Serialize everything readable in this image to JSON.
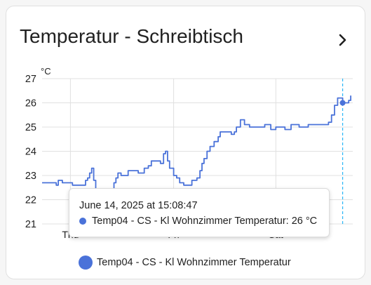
{
  "card": {
    "title": "Temperatur - Schreibtisch"
  },
  "icons": {
    "more_info": "chevron-right-icon"
  },
  "colors": {
    "series": "#4a72d9",
    "cursor_line": "#29b6f6",
    "grid": "#e0e0e0"
  },
  "chart_data": {
    "type": "line",
    "ylabel": "°C",
    "ylim": [
      21,
      27
    ],
    "yticks": [
      "27",
      "26",
      "25",
      "24",
      "23",
      "22",
      "21"
    ],
    "xlim": [
      0,
      3.07
    ],
    "xticks": [
      {
        "label": "Thu",
        "x": 0.28
      },
      {
        "label": "Fri",
        "x": 1.3
      },
      {
        "label": "Sat",
        "x": 2.31
      }
    ],
    "grid": true,
    "legend_position": "bottom",
    "series": [
      {
        "name": "Temp04 - CS - Kl Wohnzimmer Temperatur",
        "step": true,
        "points": [
          [
            0.0,
            22.7
          ],
          [
            0.14,
            22.6
          ],
          [
            0.16,
            22.8
          ],
          [
            0.2,
            22.7
          ],
          [
            0.3,
            22.6
          ],
          [
            0.4,
            22.6
          ],
          [
            0.43,
            22.8
          ],
          [
            0.45,
            22.9
          ],
          [
            0.47,
            23.1
          ],
          [
            0.49,
            23.3
          ],
          [
            0.51,
            22.8
          ],
          [
            0.53,
            22.1
          ],
          [
            0.6,
            21.8
          ],
          [
            0.65,
            22.1
          ],
          [
            0.68,
            22.4
          ],
          [
            0.71,
            22.7
          ],
          [
            0.73,
            22.9
          ],
          [
            0.75,
            23.1
          ],
          [
            0.78,
            23.0
          ],
          [
            0.85,
            23.2
          ],
          [
            0.95,
            23.1
          ],
          [
            1.01,
            23.3
          ],
          [
            1.05,
            23.4
          ],
          [
            1.08,
            23.6
          ],
          [
            1.13,
            23.6
          ],
          [
            1.17,
            23.5
          ],
          [
            1.2,
            23.9
          ],
          [
            1.22,
            24.0
          ],
          [
            1.24,
            23.6
          ],
          [
            1.26,
            23.3
          ],
          [
            1.3,
            23.0
          ],
          [
            1.33,
            22.9
          ],
          [
            1.36,
            22.7
          ],
          [
            1.4,
            22.6
          ],
          [
            1.44,
            22.6
          ],
          [
            1.48,
            22.8
          ],
          [
            1.53,
            22.9
          ],
          [
            1.56,
            23.2
          ],
          [
            1.58,
            23.5
          ],
          [
            1.6,
            23.7
          ],
          [
            1.63,
            24.0
          ],
          [
            1.66,
            24.2
          ],
          [
            1.7,
            24.4
          ],
          [
            1.74,
            24.6
          ],
          [
            1.76,
            24.8
          ],
          [
            1.82,
            24.8
          ],
          [
            1.87,
            24.7
          ],
          [
            1.9,
            24.8
          ],
          [
            1.92,
            25.0
          ],
          [
            1.96,
            25.3
          ],
          [
            2.0,
            25.1
          ],
          [
            2.05,
            25.0
          ],
          [
            2.2,
            25.1
          ],
          [
            2.26,
            24.9
          ],
          [
            2.31,
            25.0
          ],
          [
            2.4,
            24.9
          ],
          [
            2.46,
            25.1
          ],
          [
            2.54,
            25.0
          ],
          [
            2.63,
            25.1
          ],
          [
            2.7,
            25.1
          ],
          [
            2.8,
            25.1
          ],
          [
            2.83,
            25.2
          ],
          [
            2.86,
            25.5
          ],
          [
            2.89,
            25.9
          ],
          [
            2.92,
            26.2
          ],
          [
            2.97,
            26.0
          ],
          [
            3.03,
            26.1
          ],
          [
            3.05,
            26.3
          ]
        ]
      }
    ],
    "cursor": {
      "x": 2.97,
      "value": 26
    }
  },
  "tooltip": {
    "time": "June 14, 2025 at 15:08:47",
    "line": "Temp04 - CS - Kl Wohnzimmer Temperatur: 26 °C"
  },
  "legend": {
    "label": "Temp04 - CS - Kl Wohnzimmer Temperatur"
  }
}
